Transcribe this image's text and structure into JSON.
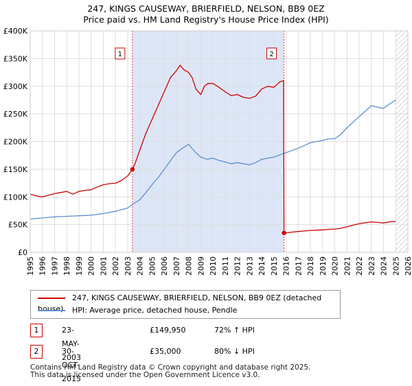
{
  "title_line1": "247, KINGS CAUSEWAY, BRIERFIELD, NELSON, BB9 0EZ",
  "title_line2": "Price paid vs. HM Land Registry's House Price Index (HPI)",
  "colors": {
    "property": "#cc0000",
    "hpi": "#5b8fd0",
    "shade": "#dde6f7",
    "grid": "#dddddd"
  },
  "legend": {
    "property_label": "247, KINGS CAUSEWAY, BRIERFIELD, NELSON, BB9 0EZ (detached house)",
    "hpi_label": "HPI: Average price, detached house, Pendle"
  },
  "transactions": [
    {
      "num": "1",
      "date": "23-MAY-2003",
      "price": "£149,950",
      "hpi": "72% ↑ HPI"
    },
    {
      "num": "2",
      "date": "30-OCT-2015",
      "price": "£35,000",
      "hpi": "80% ↓ HPI"
    }
  ],
  "footer_line1": "Contains HM Land Registry data © Crown copyright and database right 2025.",
  "footer_line2": "This data is licensed under the Open Government Licence v3.0.",
  "chart_data": {
    "type": "line",
    "title": "247, KINGS CAUSEWAY, BRIERFIELD, NELSON, BB9 0EZ — Price paid vs. HM Land Registry's House Price Index (HPI)",
    "xlabel": "",
    "ylabel": "",
    "xlim": [
      1995,
      2026
    ],
    "ylim": [
      0,
      400000
    ],
    "x_ticks": [
      1995,
      1996,
      1997,
      1998,
      1999,
      2000,
      2001,
      2002,
      2003,
      2004,
      2005,
      2006,
      2007,
      2008,
      2009,
      2010,
      2011,
      2012,
      2013,
      2014,
      2015,
      2016,
      2017,
      2018,
      2019,
      2020,
      2021,
      2022,
      2023,
      2024,
      2025,
      2026
    ],
    "y_ticks": [
      {
        "value": 0,
        "label": "£0"
      },
      {
        "value": 50000,
        "label": "£50K"
      },
      {
        "value": 100000,
        "label": "£100K"
      },
      {
        "value": 150000,
        "label": "£150K"
      },
      {
        "value": 200000,
        "label": "£200K"
      },
      {
        "value": 250000,
        "label": "£250K"
      },
      {
        "value": 300000,
        "label": "£300K"
      },
      {
        "value": 350000,
        "label": "£350K"
      },
      {
        "value": 400000,
        "label": "£400K"
      }
    ],
    "shaded_range": [
      2003.39,
      2015.83
    ],
    "future_hatch_from": 2025.0,
    "markers": [
      {
        "label": "1",
        "x": 2003.39,
        "y": 149950
      },
      {
        "label": "2",
        "x": 2015.83,
        "y": 35000
      }
    ],
    "series": [
      {
        "name": "247, KINGS CAUSEWAY, BRIERFIELD, NELSON, BB9 0EZ (detached house)",
        "x": [
          1995,
          1995.5,
          1996,
          1996.5,
          1997,
          1997.5,
          1998,
          1998.5,
          1999,
          1999.5,
          2000,
          2000.5,
          2001,
          2001.5,
          2002,
          2002.5,
          2003,
          2003.39,
          2003.6,
          2004,
          2004.5,
          2005,
          2005.5,
          2006,
          2006.5,
          2007,
          2007.3,
          2007.6,
          2008,
          2008.3,
          2008.6,
          2009,
          2009.3,
          2009.6,
          2010,
          2010.5,
          2011,
          2011.5,
          2012,
          2012.5,
          2013,
          2013.5,
          2014,
          2014.5,
          2015,
          2015.5,
          2015.8,
          2015.83,
          2016,
          2016.5,
          2017,
          2017.5,
          2018,
          2018.5,
          2019,
          2019.5,
          2020,
          2020.5,
          2021,
          2021.5,
          2022,
          2022.5,
          2023,
          2023.5,
          2024,
          2024.5,
          2025
        ],
        "values": [
          105000,
          102000,
          100000,
          103000,
          106000,
          108000,
          110000,
          105000,
          110000,
          112000,
          113000,
          118000,
          122000,
          124000,
          125000,
          130000,
          138000,
          149950,
          160000,
          185000,
          215000,
          240000,
          265000,
          290000,
          315000,
          328000,
          338000,
          330000,
          325000,
          315000,
          295000,
          285000,
          300000,
          305000,
          305000,
          298000,
          290000,
          283000,
          285000,
          280000,
          278000,
          282000,
          295000,
          300000,
          298000,
          308000,
          310000,
          35000,
          35000,
          36500,
          37500,
          38500,
          39500,
          40000,
          40500,
          41500,
          42000,
          43500,
          46000,
          49000,
          51500,
          53500,
          55000,
          54000,
          53000,
          55000,
          56000
        ]
      },
      {
        "name": "HPI: Average price, detached house, Pendle",
        "x": [
          1995,
          1995.5,
          1996,
          1996.5,
          1997,
          1997.5,
          1998,
          1998.5,
          1999,
          1999.5,
          2000,
          2000.5,
          2001,
          2001.5,
          2002,
          2002.5,
          2003,
          2003.5,
          2004,
          2004.5,
          2005,
          2005.5,
          2006,
          2006.5,
          2007,
          2007.5,
          2008,
          2008.5,
          2009,
          2009.5,
          2010,
          2010.5,
          2011,
          2011.5,
          2012,
          2012.5,
          2013,
          2013.5,
          2014,
          2014.5,
          2015,
          2015.5,
          2016,
          2016.5,
          2017,
          2017.5,
          2018,
          2018.5,
          2019,
          2019.5,
          2020,
          2020.5,
          2021,
          2021.5,
          2022,
          2022.5,
          2023,
          2023.5,
          2024,
          2024.5,
          2025
        ],
        "values": [
          60000,
          61000,
          62000,
          63000,
          64000,
          64500,
          65000,
          65500,
          66000,
          66500,
          67000,
          68500,
          70000,
          72000,
          74000,
          77000,
          80000,
          88000,
          95000,
          108000,
          122000,
          135000,
          150000,
          165000,
          180000,
          188000,
          195000,
          182000,
          172000,
          168000,
          170000,
          166000,
          163000,
          160000,
          162000,
          160000,
          158000,
          162000,
          168000,
          170000,
          172000,
          176000,
          180000,
          184000,
          188000,
          193000,
          198000,
          200000,
          202000,
          205000,
          205000,
          213000,
          225000,
          235000,
          245000,
          255000,
          265000,
          262000,
          260000,
          268000,
          275000
        ]
      }
    ]
  }
}
